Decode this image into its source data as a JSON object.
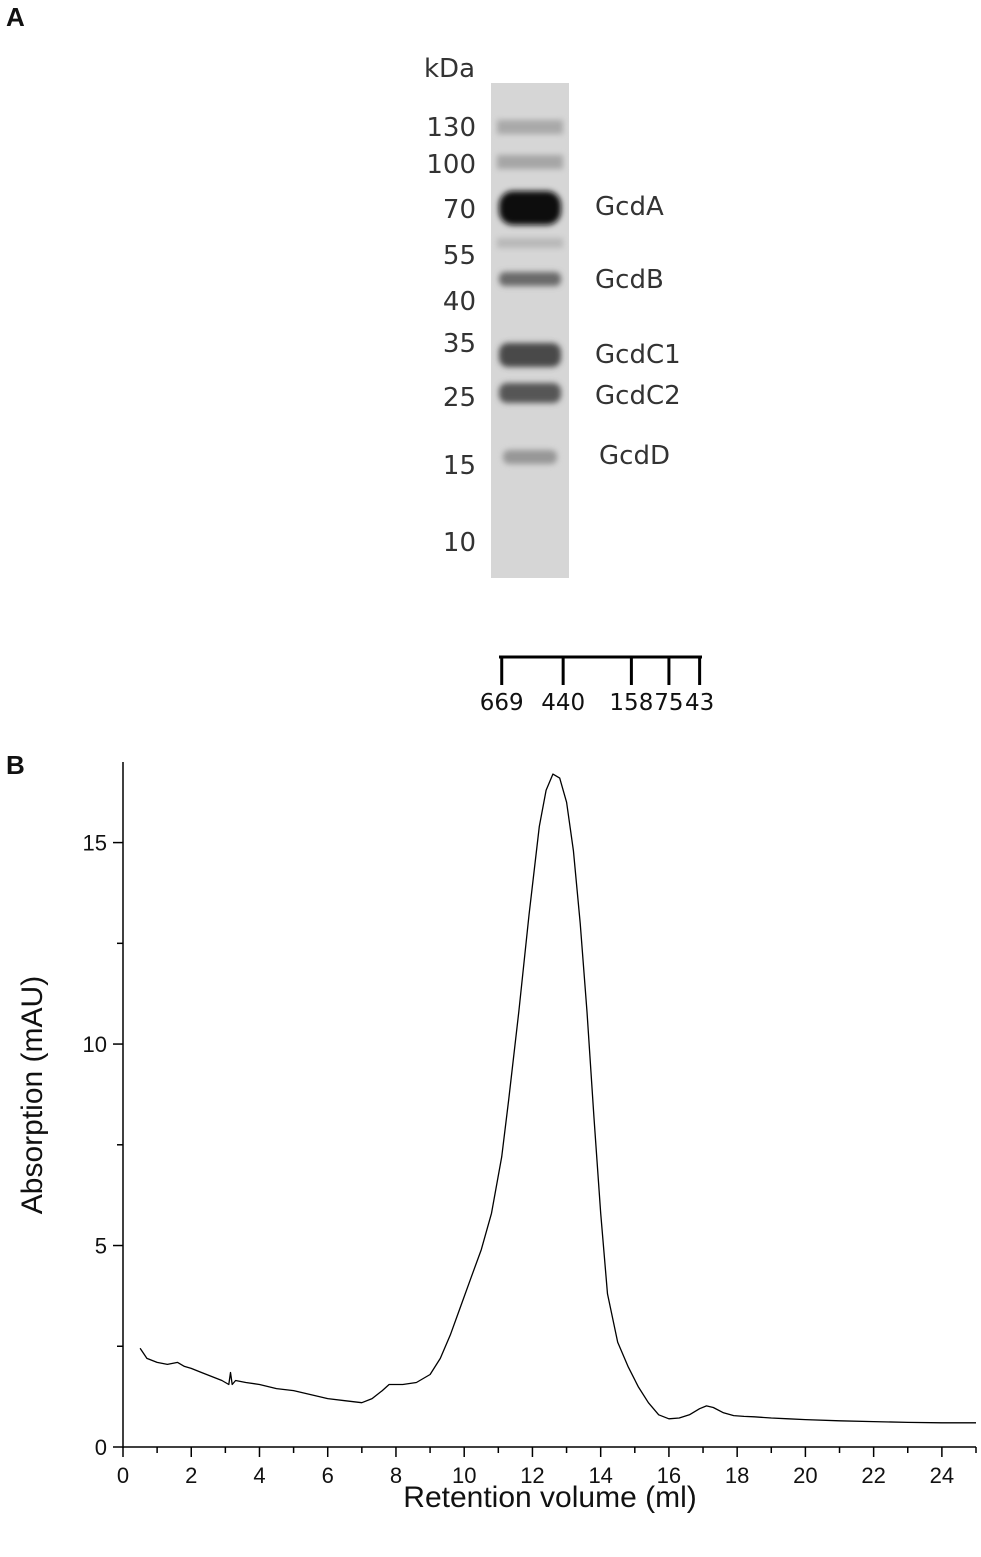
{
  "panels": {
    "a": "A",
    "b": "B"
  },
  "gel": {
    "unit": "kDa",
    "markers": [
      "130",
      "100",
      "70",
      "55",
      "40",
      "35",
      "25",
      "15",
      "10"
    ],
    "bands": [
      "GcdA",
      "GcdB",
      "GcdC1",
      "GcdC2",
      "GcdD"
    ]
  },
  "calibration": {
    "labels": [
      "669",
      "440",
      "158",
      "75",
      "43"
    ],
    "positions_ml": [
      11.1,
      12.9,
      14.9,
      16.0,
      16.9
    ]
  },
  "chart_data": {
    "type": "line",
    "xlabel": "Retention volume (ml)",
    "ylabel": "Absorption (mAU)",
    "xlim": [
      0,
      25
    ],
    "ylim": [
      0,
      17
    ],
    "x_ticks": [
      "0",
      "2",
      "4",
      "6",
      "8",
      "10",
      "12",
      "14",
      "16",
      "18",
      "20",
      "22",
      "24"
    ],
    "y_ticks": [
      "0",
      "5",
      "10",
      "15"
    ],
    "series": [
      {
        "x": [
          0.5,
          0.7,
          1.0,
          1.3,
          1.6,
          1.8,
          2.0,
          2.3,
          2.6,
          2.9,
          3.1,
          3.15,
          3.2,
          3.3,
          3.6,
          4.0,
          4.5,
          5.0,
          5.5,
          6.0,
          6.5,
          7.0,
          7.3,
          7.6,
          7.8,
          8.2,
          8.6,
          9.0,
          9.3,
          9.6,
          9.9,
          10.2,
          10.5,
          10.8,
          11.1,
          11.3,
          11.6,
          11.9,
          12.2,
          12.4,
          12.6,
          12.8,
          13.0,
          13.2,
          13.4,
          13.6,
          13.8,
          14.0,
          14.2,
          14.5,
          14.8,
          15.1,
          15.4,
          15.7,
          16.0,
          16.3,
          16.6,
          16.9,
          17.1,
          17.3,
          17.6,
          17.9,
          18.2,
          18.5,
          19.0,
          19.5,
          20.0,
          21.0,
          22.0,
          23.0,
          24.0,
          25.0
        ],
        "y": [
          2.45,
          2.2,
          2.1,
          2.05,
          2.1,
          2.0,
          1.95,
          1.85,
          1.75,
          1.65,
          1.55,
          1.85,
          1.55,
          1.65,
          1.6,
          1.55,
          1.45,
          1.4,
          1.3,
          1.2,
          1.15,
          1.1,
          1.2,
          1.4,
          1.55,
          1.55,
          1.6,
          1.8,
          2.2,
          2.8,
          3.5,
          4.2,
          4.9,
          5.8,
          7.2,
          8.6,
          10.8,
          13.2,
          15.4,
          16.3,
          16.7,
          16.6,
          16.0,
          14.8,
          13.0,
          10.8,
          8.2,
          5.8,
          3.8,
          2.6,
          2.0,
          1.5,
          1.1,
          0.8,
          0.7,
          0.72,
          0.8,
          0.95,
          1.02,
          0.98,
          0.85,
          0.78,
          0.76,
          0.75,
          0.72,
          0.7,
          0.68,
          0.65,
          0.63,
          0.61,
          0.6,
          0.6
        ]
      }
    ]
  }
}
